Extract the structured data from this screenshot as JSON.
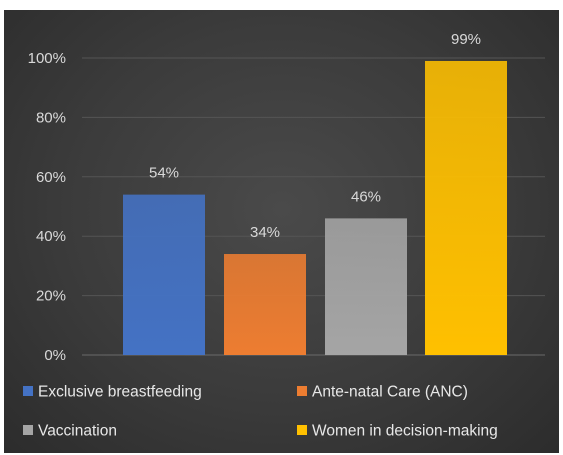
{
  "chart_data": {
    "type": "bar",
    "categories": [
      "Exclusive breastfeeding",
      "Ante-natal Care (ANC)",
      "Vaccination",
      "Women in decision-making"
    ],
    "values": [
      54,
      34,
      46,
      99
    ],
    "data_labels": [
      "54%",
      "34%",
      "46%",
      "99%"
    ],
    "colors": [
      "#4472c4",
      "#ed7d31",
      "#a5a5a5",
      "#ffc000"
    ],
    "ylim": [
      0,
      100
    ],
    "yticks": [
      0,
      20,
      40,
      60,
      80,
      100
    ],
    "ytick_labels": [
      "0%",
      "20%",
      "40%",
      "60%",
      "80%",
      "100%"
    ],
    "grid": true,
    "legend_position": "bottom",
    "title": "",
    "xlabel": "",
    "ylabel": ""
  }
}
